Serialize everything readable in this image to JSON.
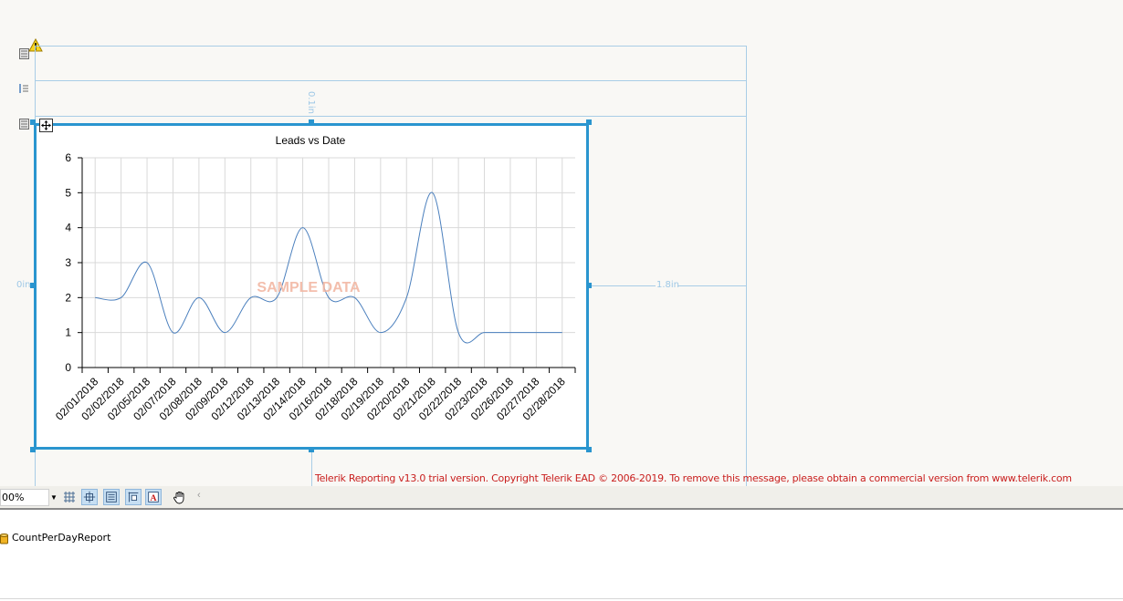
{
  "designer": {
    "ruler_top": "0.1in",
    "ruler_left": "0in",
    "ruler_right": "1.8in",
    "watermark": "SAMPLE DATA",
    "trial_message": "Telerik Reporting v13.0 trial version. Copyright Telerik EAD © 2006-2019. To remove this message, please obtain a commercial version from www.telerik.com"
  },
  "toolbar": {
    "zoom_value": "00%",
    "buttons": [
      "grid-icon",
      "snap-to-grid-icon",
      "dimensions-icon",
      "snap-to-snaplines-icon",
      "text-style-icon",
      "hand-tool-icon"
    ],
    "scroll_arrow": "‹"
  },
  "data_explorer": {
    "items": [
      {
        "label": "CountPerDayReport"
      }
    ]
  },
  "colors": {
    "selection": "#2a95cf",
    "line": "#4a7fbd",
    "watermark": "#f2b8a4",
    "trial_text": "#c9201f"
  },
  "chart_data": {
    "type": "line",
    "title": "Leads vs Date",
    "xlabel": "",
    "ylabel": "",
    "ylim": [
      0,
      6
    ],
    "yticks": [
      0,
      1,
      2,
      3,
      4,
      5,
      6
    ],
    "grid": true,
    "smooth": true,
    "categories": [
      "02/01/2018",
      "02/02/2018",
      "02/05/2018",
      "02/07/2018",
      "02/08/2018",
      "02/09/2018",
      "02/12/2018",
      "02/13/2018",
      "02/14/2018",
      "02/16/2018",
      "02/18/2018",
      "02/19/2018",
      "02/20/2018",
      "02/21/2018",
      "02/22/2018",
      "02/23/2018",
      "02/26/2018",
      "02/27/2018",
      "02/28/2018"
    ],
    "series": [
      {
        "values": [
          2,
          2,
          3,
          1,
          2,
          1,
          2,
          2,
          4,
          2,
          2,
          1,
          2,
          5,
          1,
          1,
          1,
          1,
          1
        ]
      }
    ]
  }
}
